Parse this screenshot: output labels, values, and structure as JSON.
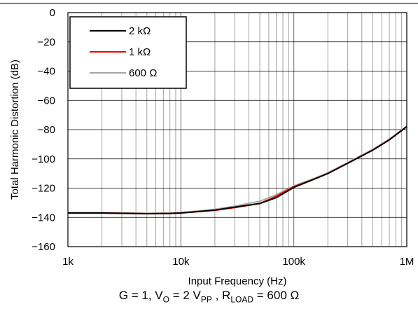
{
  "caption": {
    "g_part": "G = 1, V",
    "vo_sub": "O",
    "vo_part": " = 2 V",
    "vpp_sub": "PP",
    "r_part": " , R",
    "rload_sub": "LOAD",
    "rload_value": " = 600 Ω"
  },
  "chart_data": {
    "type": "line",
    "title": "",
    "xlabel": "Input Frequency (Hz)",
    "ylabel": "Total Harmonic Distortion (dB)",
    "xscale": "log",
    "xlim": [
      1000,
      1000000
    ],
    "ylim": [
      -160,
      0
    ],
    "xticks": [
      1000,
      10000,
      100000,
      1000000
    ],
    "xtick_labels": [
      "1k",
      "10k",
      "100k",
      "1M"
    ],
    "yticks": [
      0,
      -20,
      -40,
      -60,
      -80,
      -100,
      -120,
      -140,
      -160
    ],
    "ytick_labels": [
      "0",
      "−20",
      "−40",
      "−60",
      "−80",
      "−100",
      "−120",
      "−140",
      "−160"
    ],
    "grid": true,
    "legend_position": "top-left",
    "colors": {
      "2k": "#000000",
      "1k": "#ff0000",
      "600": "#a6a6a6",
      "grid": "#a0a0a0",
      "axis": "#000000"
    },
    "series": [
      {
        "name": "2 kΩ",
        "color": "#000000",
        "x": [
          1000,
          2000,
          5000,
          8000,
          10000,
          20000,
          30000,
          50000,
          70000,
          100000,
          150000,
          200000,
          300000,
          500000,
          700000,
          1000000
        ],
        "y": [
          -137,
          -137,
          -137.5,
          -137.3,
          -137,
          -135,
          -133,
          -130.5,
          -126.5,
          -119.5,
          -114,
          -110,
          -103,
          -94,
          -87,
          -78
        ]
      },
      {
        "name": "1 kΩ",
        "color": "#ff0000",
        "x": [
          1000,
          2000,
          5000,
          8000,
          10000,
          20000,
          30000,
          50000,
          70000,
          100000,
          150000,
          200000,
          300000,
          500000,
          700000,
          1000000
        ],
        "y": [
          -137,
          -137,
          -137.5,
          -137.3,
          -137,
          -135.2,
          -133.3,
          -130.5,
          -125.5,
          -119,
          -114,
          -110,
          -103,
          -94,
          -87,
          -78
        ]
      },
      {
        "name": "600 Ω",
        "color": "#a6a6a6",
        "x": [
          1000,
          2000,
          5000,
          8000,
          10000,
          20000,
          30000,
          50000,
          70000,
          100000,
          150000,
          200000,
          300000,
          500000,
          700000,
          1000000
        ],
        "y": [
          -136.7,
          -136.7,
          -137.2,
          -137,
          -136.7,
          -134.5,
          -132.3,
          -129,
          -124.5,
          -118.5,
          -113.5,
          -109.5,
          -102.5,
          -93.5,
          -86.5,
          -77.5
        ]
      }
    ]
  }
}
